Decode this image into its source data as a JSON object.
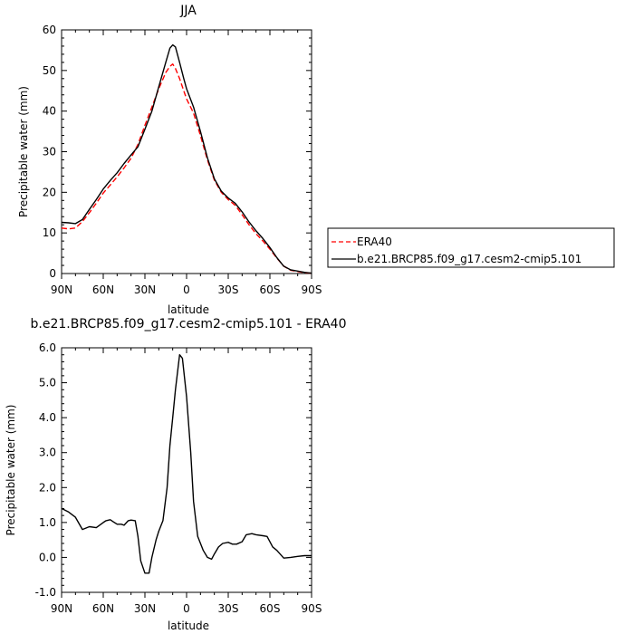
{
  "chart_data": [
    {
      "type": "line",
      "title": "JJA",
      "xlabel": "latitude",
      "ylabel": "Precipitable water (mm)",
      "ylim": [
        0,
        60
      ],
      "yticks": [
        0,
        10,
        20,
        30,
        40,
        50,
        60
      ],
      "ytick_labels": [
        "0",
        "10",
        "20",
        "30",
        "40",
        "50",
        "60"
      ],
      "xlim": [
        90,
        -90
      ],
      "xticks": [
        90,
        60,
        30,
        0,
        -30,
        -60,
        -90
      ],
      "xtick_labels": [
        "90N",
        "60N",
        "30N",
        "0",
        "30S",
        "60S",
        "90S"
      ],
      "legend_position": "outside-right",
      "series": [
        {
          "name": "ERA40",
          "color": "#ff0000",
          "dash": "dashed",
          "x": [
            90,
            85,
            80,
            75,
            70,
            65,
            60,
            55,
            50,
            45,
            40,
            35,
            30,
            25,
            20,
            15,
            12,
            10,
            8,
            5,
            2,
            0,
            -5,
            -10,
            -15,
            -20,
            -25,
            -30,
            -35,
            -40,
            -45,
            -50,
            -55,
            -60,
            -65,
            -70,
            -75,
            -80,
            -85,
            -90
          ],
          "y": [
            11.2,
            11.0,
            11.2,
            12.8,
            15.0,
            17.3,
            19.8,
            21.8,
            23.8,
            26.0,
            28.4,
            31.8,
            36.5,
            41.0,
            45.5,
            49.5,
            51.0,
            51.6,
            50.5,
            48.0,
            45.0,
            43.0,
            39.5,
            34.0,
            28.0,
            23.0,
            20.0,
            18.2,
            16.8,
            14.5,
            12.0,
            9.8,
            8.0,
            6.0,
            3.8,
            1.8,
            0.8,
            0.5,
            0.2,
            0.1
          ]
        },
        {
          "name": "b.e21.BRCP85.f09_g17.cesm2-cmip5.101",
          "color": "#000000",
          "dash": "solid",
          "x": [
            90,
            85,
            80,
            75,
            70,
            65,
            60,
            55,
            50,
            45,
            40,
            35,
            30,
            25,
            20,
            15,
            12,
            10,
            8,
            5,
            2,
            0,
            -5,
            -10,
            -15,
            -20,
            -25,
            -30,
            -35,
            -40,
            -45,
            -50,
            -55,
            -60,
            -65,
            -70,
            -75,
            -80,
            -85,
            -90
          ],
          "y": [
            12.6,
            12.5,
            12.3,
            13.3,
            15.8,
            18.2,
            20.8,
            22.9,
            24.8,
            27.1,
            29.2,
            31.2,
            35.5,
            40.0,
            46.0,
            52.0,
            55.5,
            56.3,
            55.8,
            52.0,
            48.0,
            45.5,
            41.0,
            35.0,
            28.5,
            23.3,
            20.3,
            18.6,
            17.3,
            15.2,
            12.7,
            10.5,
            8.6,
            6.4,
            3.9,
            1.8,
            0.9,
            0.6,
            0.3,
            0.1
          ]
        }
      ]
    },
    {
      "type": "line",
      "title": "b.e21.BRCP85.f09_g17.cesm2-cmip5.101 - ERA40",
      "xlabel": "latitude",
      "ylabel": "Precipitable water (mm)",
      "ylim": [
        -1.0,
        6.0
      ],
      "yticks": [
        -1.0,
        0.0,
        1.0,
        2.0,
        3.0,
        4.0,
        5.0,
        6.0
      ],
      "ytick_labels": [
        "-1.0",
        "0.0",
        "1.0",
        "2.0",
        "3.0",
        "4.0",
        "5.0",
        "6.0"
      ],
      "xlim": [
        90,
        -90
      ],
      "xticks": [
        90,
        60,
        30,
        0,
        -30,
        -60,
        -90
      ],
      "xtick_labels": [
        "90N",
        "60N",
        "30N",
        "0",
        "30S",
        "60S",
        "90S"
      ],
      "series": [
        {
          "name": "",
          "color": "#000000",
          "dash": "solid",
          "x": [
            90,
            85,
            80,
            75,
            70,
            65,
            60,
            58,
            55,
            52,
            50,
            47,
            45,
            42,
            40,
            37,
            35,
            33,
            30,
            27,
            25,
            22,
            20,
            17,
            14,
            12,
            10,
            8,
            5,
            3,
            0,
            -3,
            -5,
            -8,
            -12,
            -15,
            -18,
            -20,
            -23,
            -26,
            -30,
            -33,
            -36,
            -40,
            -43,
            -47,
            -50,
            -55,
            -58,
            -62,
            -65,
            -70,
            -75,
            -80,
            -85,
            -90
          ],
          "y": [
            1.4,
            1.3,
            1.15,
            0.8,
            0.88,
            0.85,
            1.0,
            1.05,
            1.08,
            1.0,
            0.95,
            0.95,
            0.92,
            1.05,
            1.07,
            1.05,
            0.6,
            -0.1,
            -0.45,
            -0.45,
            0.0,
            0.5,
            0.75,
            1.05,
            2.0,
            3.2,
            4.0,
            4.8,
            5.8,
            5.7,
            4.6,
            3.0,
            1.6,
            0.6,
            0.2,
            0.0,
            -0.05,
            0.1,
            0.3,
            0.4,
            0.43,
            0.38,
            0.38,
            0.45,
            0.65,
            0.68,
            0.65,
            0.62,
            0.6,
            0.3,
            0.2,
            -0.02,
            0.0,
            0.03,
            0.05,
            0.05
          ]
        }
      ]
    }
  ]
}
